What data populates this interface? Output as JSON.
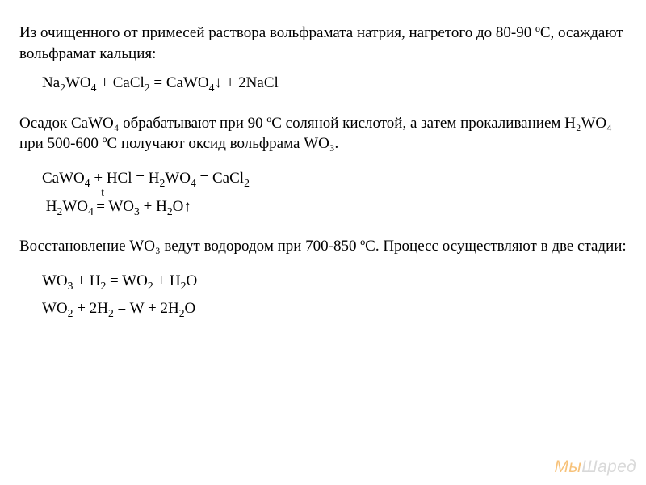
{
  "text": {
    "p1": "Из очищенного от примесей раствора вольфрамата натрия, нагретого до 80-90 ºС, осаждают вольфрамат кальция:",
    "p2": "Осадок CaWO₄ обрабатывают при 90 ºС соляной кислотой, а затем прокаливанием H₂WO₄ при 500-600 ºС получают оксид вольфрама WO₃.",
    "p3": "Восстановление WO₃ ведут водородом при 700-850 ºС. Процесс осуществляют в две стадии:"
  },
  "equations": {
    "eq1": "Na₂WO₄ + CaCl₂ = CaWO₄↓ + 2NaCl",
    "eq2": "CaWO₄ + HCl = H₂WO₄ = CaCl₂",
    "eq3": "H₂WO₄ = WO₃ + H₂O↑",
    "eq3_condition": "t",
    "eq4": "WO₃ + H₂ = WO₂ + H₂O",
    "eq5": "WO₂ + 2H₂ = W + 2H₂O"
  },
  "style": {
    "font_family": "Times New Roman",
    "font_size_pt": 14,
    "body_color": "#000000",
    "background_color": "#ffffff",
    "watermark_color_gray": "#d9d9d9",
    "watermark_color_orange": "#f7c27a"
  },
  "watermark": {
    "part1": "Мы",
    "part2": "Шаред"
  }
}
